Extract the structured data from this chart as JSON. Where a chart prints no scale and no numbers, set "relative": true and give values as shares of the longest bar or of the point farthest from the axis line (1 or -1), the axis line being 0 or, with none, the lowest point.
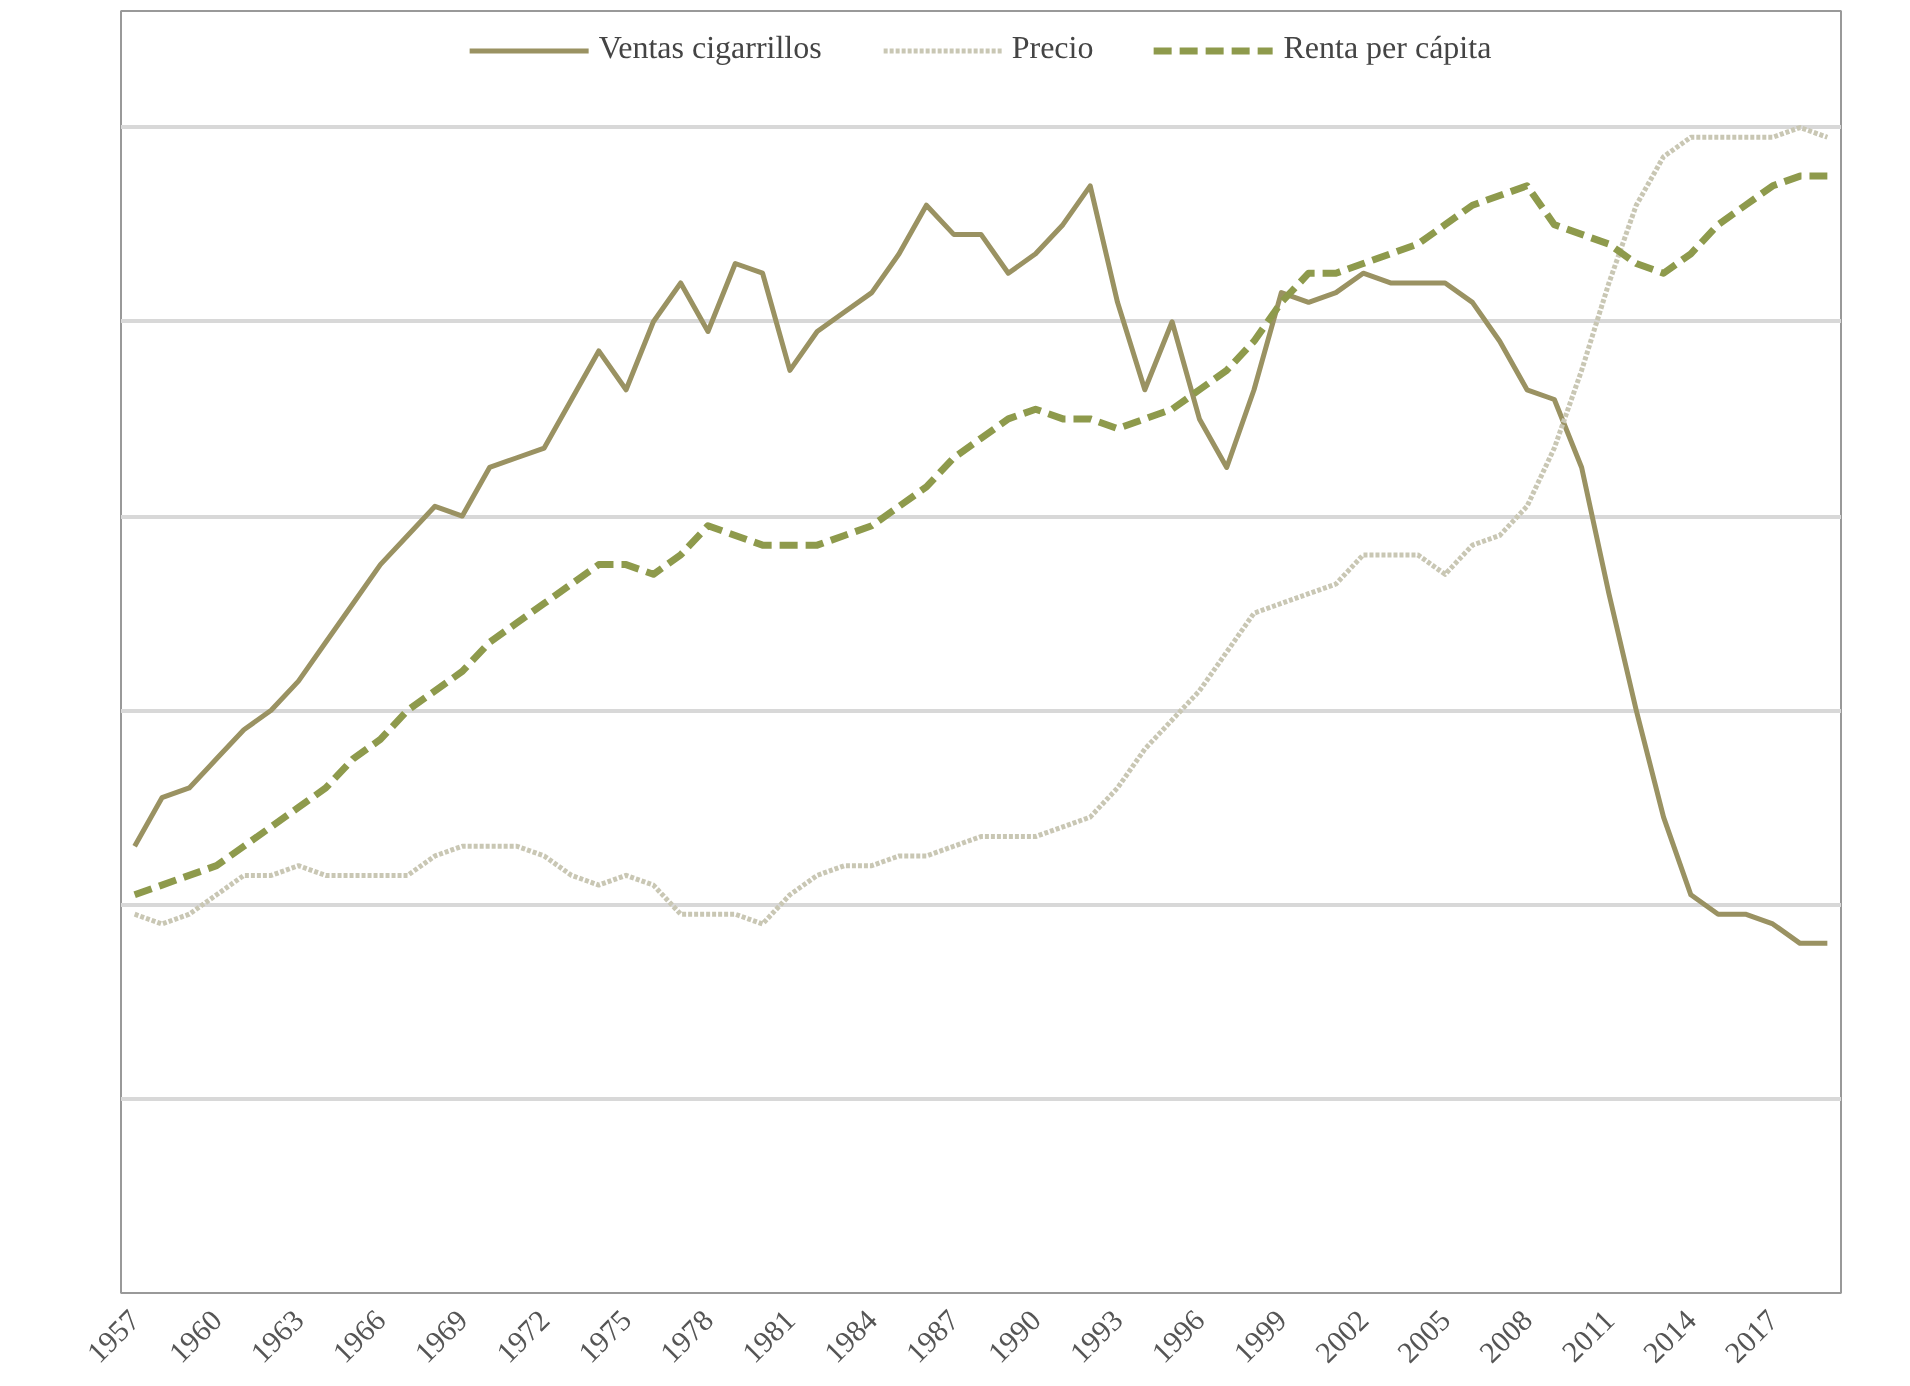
{
  "chart_data": {
    "type": "line",
    "relative": true,
    "grid": "y",
    "legend": "top",
    "categories": [
      "1957",
      null,
      null,
      "1960",
      null,
      null,
      "1963",
      null,
      null,
      "1966",
      null,
      null,
      "1969",
      null,
      null,
      "1972",
      null,
      null,
      "1975",
      null,
      null,
      "1978",
      null,
      null,
      "1981",
      null,
      null,
      "1984",
      null,
      null,
      "1987",
      null,
      null,
      "1990",
      null,
      null,
      "1993",
      null,
      null,
      "1996",
      null,
      null,
      "1999",
      null,
      null,
      "2002",
      null,
      null,
      "2005",
      null,
      null,
      "2008",
      null,
      null,
      "2011",
      null,
      null,
      "2014",
      null,
      null,
      "2017",
      null,
      null
    ],
    "series": [
      {
        "name": "Ventas cigarrillos",
        "color": "#9a9262",
        "line_style": "solid",
        "values": [
          0.26,
          0.31,
          0.32,
          0.35,
          0.38,
          0.4,
          0.43,
          0.47,
          0.51,
          0.55,
          0.58,
          0.61,
          0.6,
          0.65,
          0.66,
          0.67,
          0.72,
          0.77,
          0.73,
          0.8,
          0.84,
          0.79,
          0.86,
          0.85,
          0.75,
          0.79,
          0.81,
          0.83,
          0.87,
          0.92,
          0.89,
          0.89,
          0.85,
          0.87,
          0.9,
          0.94,
          0.82,
          0.73,
          0.8,
          0.7,
          0.65,
          0.73,
          0.83,
          0.82,
          0.83,
          0.85,
          0.84,
          0.84,
          0.84,
          0.82,
          0.78,
          0.73,
          0.72,
          0.65,
          0.52,
          0.4,
          0.29,
          0.21,
          0.19,
          0.19,
          0.18,
          0.16,
          0.16
        ]
      },
      {
        "name": "Precio",
        "color": "#c9c7b4",
        "line_style": "dotted",
        "values": [
          0.19,
          0.18,
          0.19,
          0.21,
          0.23,
          0.23,
          0.24,
          0.23,
          0.23,
          0.23,
          0.23,
          0.25,
          0.26,
          0.26,
          0.26,
          0.25,
          0.23,
          0.22,
          0.23,
          0.22,
          0.19,
          0.19,
          0.19,
          0.18,
          0.21,
          0.23,
          0.24,
          0.24,
          0.25,
          0.25,
          0.26,
          0.27,
          0.27,
          0.27,
          0.28,
          0.29,
          0.32,
          0.36,
          0.39,
          0.42,
          0.46,
          0.5,
          0.51,
          0.52,
          0.53,
          0.56,
          0.56,
          0.56,
          0.54,
          0.57,
          0.58,
          0.61,
          0.67,
          0.75,
          0.84,
          0.92,
          0.97,
          0.99,
          0.99,
          0.99,
          0.99,
          1.0,
          0.99
        ]
      },
      {
        "name": "Renta per cápita",
        "color": "#8e9a4c",
        "line_style": "dashed",
        "values": [
          0.21,
          0.22,
          0.23,
          0.24,
          0.26,
          0.28,
          0.3,
          0.32,
          0.35,
          0.37,
          0.4,
          0.42,
          0.44,
          0.47,
          0.49,
          0.51,
          0.53,
          0.55,
          0.55,
          0.54,
          0.56,
          0.59,
          0.58,
          0.57,
          0.57,
          0.57,
          0.58,
          0.59,
          0.61,
          0.63,
          0.66,
          0.68,
          0.7,
          0.71,
          0.7,
          0.7,
          0.69,
          0.7,
          0.71,
          0.73,
          0.75,
          0.78,
          0.82,
          0.85,
          0.85,
          0.86,
          0.87,
          0.88,
          0.9,
          0.92,
          0.93,
          0.94,
          0.9,
          0.89,
          0.88,
          0.86,
          0.85,
          0.87,
          0.9,
          0.92,
          0.94,
          0.95,
          0.95
        ]
      }
    ]
  }
}
